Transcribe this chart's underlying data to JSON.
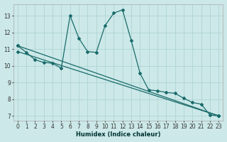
{
  "xlabel": "Humidex (Indice chaleur)",
  "ylabel": "",
  "bg_color": "#cce8e8",
  "line_color": "#1a6b6b",
  "grid_color": "#b0d4d4",
  "xlim": [
    -0.5,
    23.5
  ],
  "ylim": [
    6.7,
    13.7
  ],
  "yticks": [
    7,
    8,
    9,
    10,
    11,
    12,
    13
  ],
  "xticks": [
    0,
    1,
    2,
    3,
    4,
    5,
    6,
    7,
    8,
    9,
    10,
    11,
    12,
    13,
    14,
    15,
    16,
    17,
    18,
    19,
    20,
    21,
    22,
    23
  ],
  "series1_x": [
    0,
    1,
    2,
    3,
    4,
    5,
    6,
    7,
    8,
    9,
    10,
    11,
    12,
    13,
    14,
    15,
    16,
    17,
    18,
    19,
    20,
    21,
    22,
    23
  ],
  "series1_y": [
    11.2,
    10.8,
    10.35,
    10.2,
    10.15,
    9.85,
    13.0,
    11.65,
    10.85,
    10.8,
    12.4,
    13.15,
    13.35,
    11.5,
    9.55,
    8.55,
    8.5,
    8.4,
    8.35,
    8.05,
    7.8,
    7.7,
    7.05,
    7.0
  ],
  "series2_x": [
    0,
    23
  ],
  "series2_y": [
    11.2,
    7.0
  ],
  "series3_x": [
    0,
    23
  ],
  "series3_y": [
    10.85,
    7.0
  ],
  "figsize": [
    3.2,
    2.0
  ],
  "dpi": 100
}
